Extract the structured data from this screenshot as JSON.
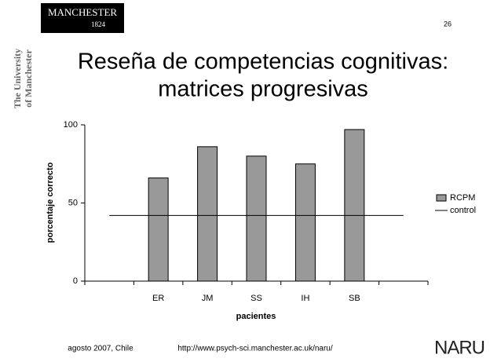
{
  "slide": {
    "logo": "MANCHESTER",
    "logo_year": "1824",
    "side_logo": [
      "The University",
      "of Manchester"
    ],
    "page_number": "26",
    "title_lines": [
      "Reseña de competencias cognitivas:",
      "matrices progresivas"
    ],
    "footer_left": "agosto 2007, Chile",
    "footer_url": "http://www.psych-sci.manchester.ac.uk/naru/",
    "footer_logo": "NARU"
  },
  "chart_data": {
    "type": "bar",
    "categories": [
      null,
      "ER",
      "JM",
      "SS",
      "IH",
      "SB",
      null
    ],
    "series": [
      {
        "name": "RCPM",
        "type": "bar",
        "color": "#999999",
        "values": [
          null,
          66,
          86,
          80,
          75,
          97,
          null
        ]
      },
      {
        "name": "control",
        "type": "line",
        "color": "#000000",
        "values": [
          42,
          42,
          42,
          42,
          42,
          42,
          42
        ]
      }
    ],
    "xlabel": "pacientes",
    "ylabel": "porcentaje correcto",
    "ylim": [
      0,
      100
    ],
    "yticks": [
      0,
      50,
      100
    ],
    "grid": false,
    "legend": "right"
  }
}
